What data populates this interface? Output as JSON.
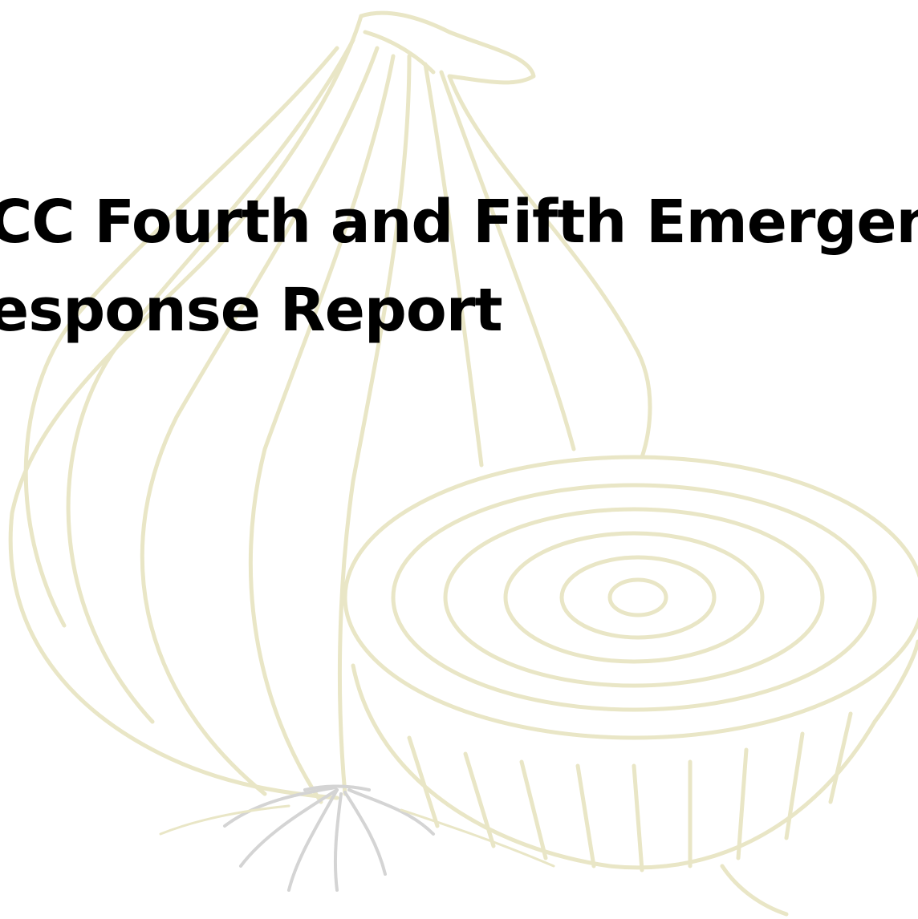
{
  "document": {
    "title_line_1": "CC Fourth and Fifth Emergency",
    "title_line_2": "esponse Report"
  },
  "watermark": {
    "icon": "onion-icon",
    "stroke_color": "#e9e6c6",
    "root_color": "#d4d4d4"
  }
}
